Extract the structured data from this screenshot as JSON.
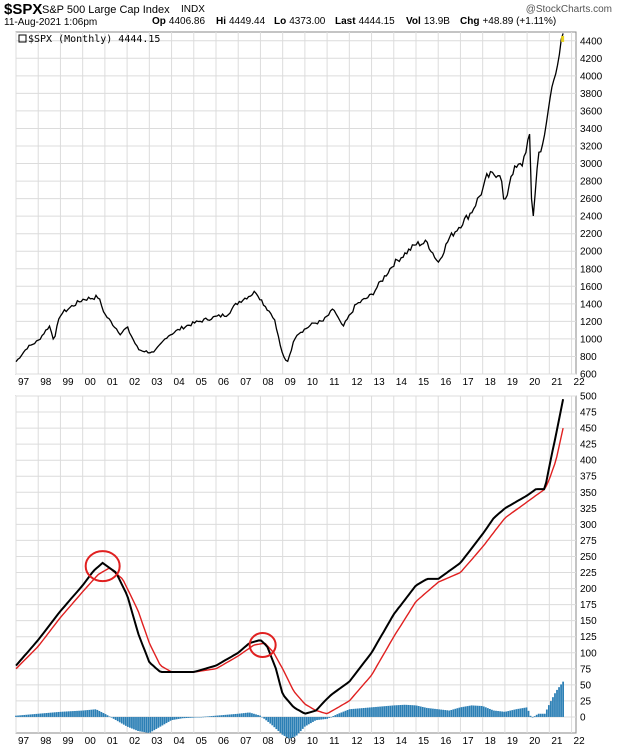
{
  "header": {
    "symbol": "$SPX",
    "name": "S&P 500 Large Cap Index",
    "exchange": "INDX",
    "logo": "@StockCharts.com",
    "date": "11-Aug-2021 1:06pm",
    "quote": [
      {
        "k": "Op",
        "v": "4406.86"
      },
      {
        "k": "Hi",
        "v": "4449.44"
      },
      {
        "k": "Lo",
        "v": "4373.00"
      },
      {
        "k": "Last",
        "v": "4444.15"
      },
      {
        "k": "Vol",
        "v": "13.9B"
      },
      {
        "k": "Chg",
        "v": "+48.89 (+1.11%)"
      }
    ]
  },
  "legend": "$SPX (Monthly) 4444.15",
  "colors": {
    "price": "#000000",
    "ma": "#e02020",
    "hist": "#2b7fb5",
    "circle": "#e02020",
    "grid": "#dcdcdc"
  },
  "chart_data": [
    {
      "type": "line",
      "name": "$SPX (Monthly)",
      "xticks": [
        "97",
        "98",
        "99",
        "00",
        "01",
        "02",
        "03",
        "04",
        "05",
        "06",
        "07",
        "08",
        "09",
        "10",
        "11",
        "12",
        "13",
        "14",
        "15",
        "16",
        "17",
        "18",
        "19",
        "20",
        "21",
        "22"
      ],
      "ylim": [
        600,
        4500
      ],
      "yticks": [
        600,
        800,
        1000,
        1200,
        1400,
        1600,
        1800,
        2000,
        2200,
        2400,
        2600,
        2800,
        3000,
        3200,
        3400,
        3600,
        3800,
        4000,
        4200,
        4400
      ],
      "x": [
        1997.0,
        1997.5,
        1998.0,
        1998.5,
        1998.7,
        1999.0,
        1999.5,
        2000.0,
        2000.7,
        2001.0,
        2001.7,
        2002.0,
        2002.5,
        2002.8,
        2003.2,
        2003.8,
        2004.5,
        2005.0,
        2005.8,
        2006.5,
        2007.0,
        2007.8,
        2008.2,
        2008.6,
        2009.0,
        2009.2,
        2009.6,
        2010.0,
        2010.4,
        2010.8,
        2011.3,
        2011.7,
        2012.3,
        2013.0,
        2014.0,
        2015.0,
        2015.5,
        2016.0,
        2016.5,
        2017.0,
        2017.5,
        2018.0,
        2018.2,
        2018.8,
        2018.98,
        2019.3,
        2019.8,
        2020.0,
        2020.15,
        2020.22,
        2020.5,
        2020.8,
        2021.0,
        2021.3,
        2021.62
      ],
      "y": [
        740,
        900,
        980,
        1150,
        990,
        1280,
        1370,
        1450,
        1480,
        1280,
        1060,
        1130,
        880,
        860,
        840,
        1030,
        1130,
        1180,
        1240,
        1280,
        1420,
        1540,
        1380,
        1250,
        810,
        730,
        1050,
        1110,
        1180,
        1200,
        1340,
        1130,
        1390,
        1500,
        1860,
        2080,
        2100,
        1870,
        2150,
        2300,
        2450,
        2700,
        2850,
        2900,
        2500,
        2900,
        3000,
        3230,
        3300,
        2230,
        3100,
        3300,
        3700,
        4100,
        4444
      ]
    },
    {
      "type": "line",
      "series": [
        {
          "name": "",
          "x": [
            1997.0,
            1998.0,
            1999.0,
            2000.0,
            2000.5,
            2000.9,
            2001.5,
            2002.0,
            2002.5,
            2003.0,
            2003.5,
            2004.0,
            2005.0,
            2006.0,
            2007.0,
            2007.5,
            2008.0,
            2008.3,
            2008.7,
            2009.0,
            2009.5,
            2010.0,
            2010.5,
            2010.9,
            2011.2,
            2012.0,
            2013.0,
            2014.0,
            2015.0,
            2015.5,
            2016.0,
            2017.0,
            2018.0,
            2018.5,
            2019.0,
            2019.5,
            2020.0,
            2020.4,
            2020.8,
            2021.0,
            2021.3,
            2021.62
          ],
          "y": [
            80,
            120,
            165,
            205,
            228,
            240,
            225,
            190,
            130,
            85,
            70,
            70,
            70,
            80,
            100,
            115,
            120,
            110,
            75,
            35,
            15,
            5,
            10,
            25,
            35,
            55,
            100,
            160,
            205,
            215,
            215,
            240,
            285,
            310,
            325,
            335,
            345,
            355,
            355,
            390,
            440,
            495
          ]
        },
        {
          "name": "",
          "x": [
            1997.0,
            1998.0,
            1999.0,
            2000.0,
            2000.7,
            2001.2,
            2001.8,
            2002.5,
            2003.0,
            2003.5,
            2004.0,
            2005.0,
            2006.0,
            2007.0,
            2007.7,
            2008.2,
            2008.6,
            2009.0,
            2009.5,
            2010.0,
            2010.5,
            2011.0,
            2012.0,
            2013.0,
            2014.0,
            2015.0,
            2016.0,
            2017.0,
            2018.0,
            2019.0,
            2019.8,
            2020.4,
            2020.8,
            2021.0,
            2021.3,
            2021.62
          ],
          "y": [
            75,
            110,
            155,
            195,
            222,
            232,
            215,
            165,
            115,
            80,
            70,
            70,
            75,
            95,
            112,
            115,
            100,
            75,
            40,
            20,
            10,
            5,
            25,
            65,
            125,
            180,
            210,
            225,
            265,
            310,
            330,
            345,
            355,
            370,
            400,
            450
          ]
        },
        {
          "name": "",
          "type": "bar",
          "x": [
            1997.0,
            1998.0,
            1999.0,
            2000.0,
            2000.6,
            2001.0,
            2001.5,
            2002.0,
            2002.5,
            2003.0,
            2003.5,
            2004.0,
            2004.5,
            2005.0,
            2006.0,
            2007.0,
            2007.5,
            2008.0,
            2008.5,
            2009.0,
            2009.3,
            2009.6,
            2010.0,
            2010.5,
            2011.0,
            2011.5,
            2012.0,
            2013.0,
            2014.0,
            2014.5,
            2015.0,
            2015.5,
            2016.0,
            2016.5,
            2017.0,
            2017.5,
            2018.0,
            2018.5,
            2019.0,
            2019.5,
            2020.0,
            2020.2,
            2020.5,
            2020.8,
            2021.0,
            2021.3,
            2021.62
          ],
          "y": [
            2,
            5,
            8,
            10,
            12,
            5,
            -5,
            -15,
            -22,
            -25,
            -15,
            -5,
            -2,
            -1,
            2,
            5,
            7,
            2,
            -12,
            -28,
            -34,
            -30,
            -15,
            -5,
            -3,
            5,
            12,
            15,
            18,
            19,
            18,
            14,
            12,
            10,
            15,
            18,
            17,
            10,
            8,
            12,
            15,
            -2,
            5,
            5,
            20,
            40,
            55
          ]
        }
      ],
      "ylim": [
        -25,
        500
      ],
      "yticks": [
        0,
        25,
        50,
        75,
        100,
        125,
        150,
        175,
        200,
        225,
        250,
        275,
        300,
        325,
        350,
        375,
        400,
        425,
        450,
        475,
        500
      ],
      "xticks": [
        "97",
        "98",
        "99",
        "00",
        "01",
        "02",
        "03",
        "04",
        "05",
        "06",
        "07",
        "08",
        "09",
        "10",
        "11",
        "12",
        "13",
        "14",
        "15",
        "16",
        "17",
        "18",
        "19",
        "20",
        "21",
        "22"
      ],
      "annotations": [
        {
          "x": 2000.9,
          "y": 235
        },
        {
          "x": 2008.1,
          "y": 112
        }
      ]
    }
  ]
}
